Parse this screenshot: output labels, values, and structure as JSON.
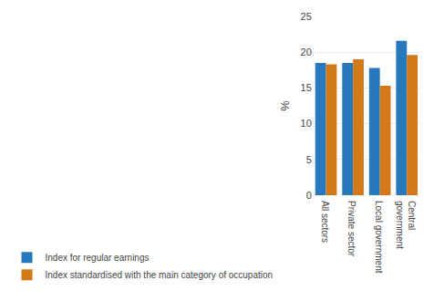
{
  "chart_data": {
    "type": "bar",
    "categories": [
      "All sectors",
      "Private sector",
      "Local government",
      "Central\ngovernment"
    ],
    "series": [
      {
        "name": "Index for regular earnings",
        "color": "#2878BE",
        "values": [
          18.5,
          18.5,
          17.8,
          21.6
        ]
      },
      {
        "name": "Index standardised with the main category of occupation",
        "color": "#D4791A",
        "values": [
          18.3,
          19.0,
          15.3,
          19.6
        ]
      }
    ],
    "ylabel": "%",
    "ylim": [
      0,
      25
    ],
    "yticks": [
      0,
      5,
      10,
      15,
      20,
      25
    ],
    "grid": true,
    "legend": "bottom"
  }
}
